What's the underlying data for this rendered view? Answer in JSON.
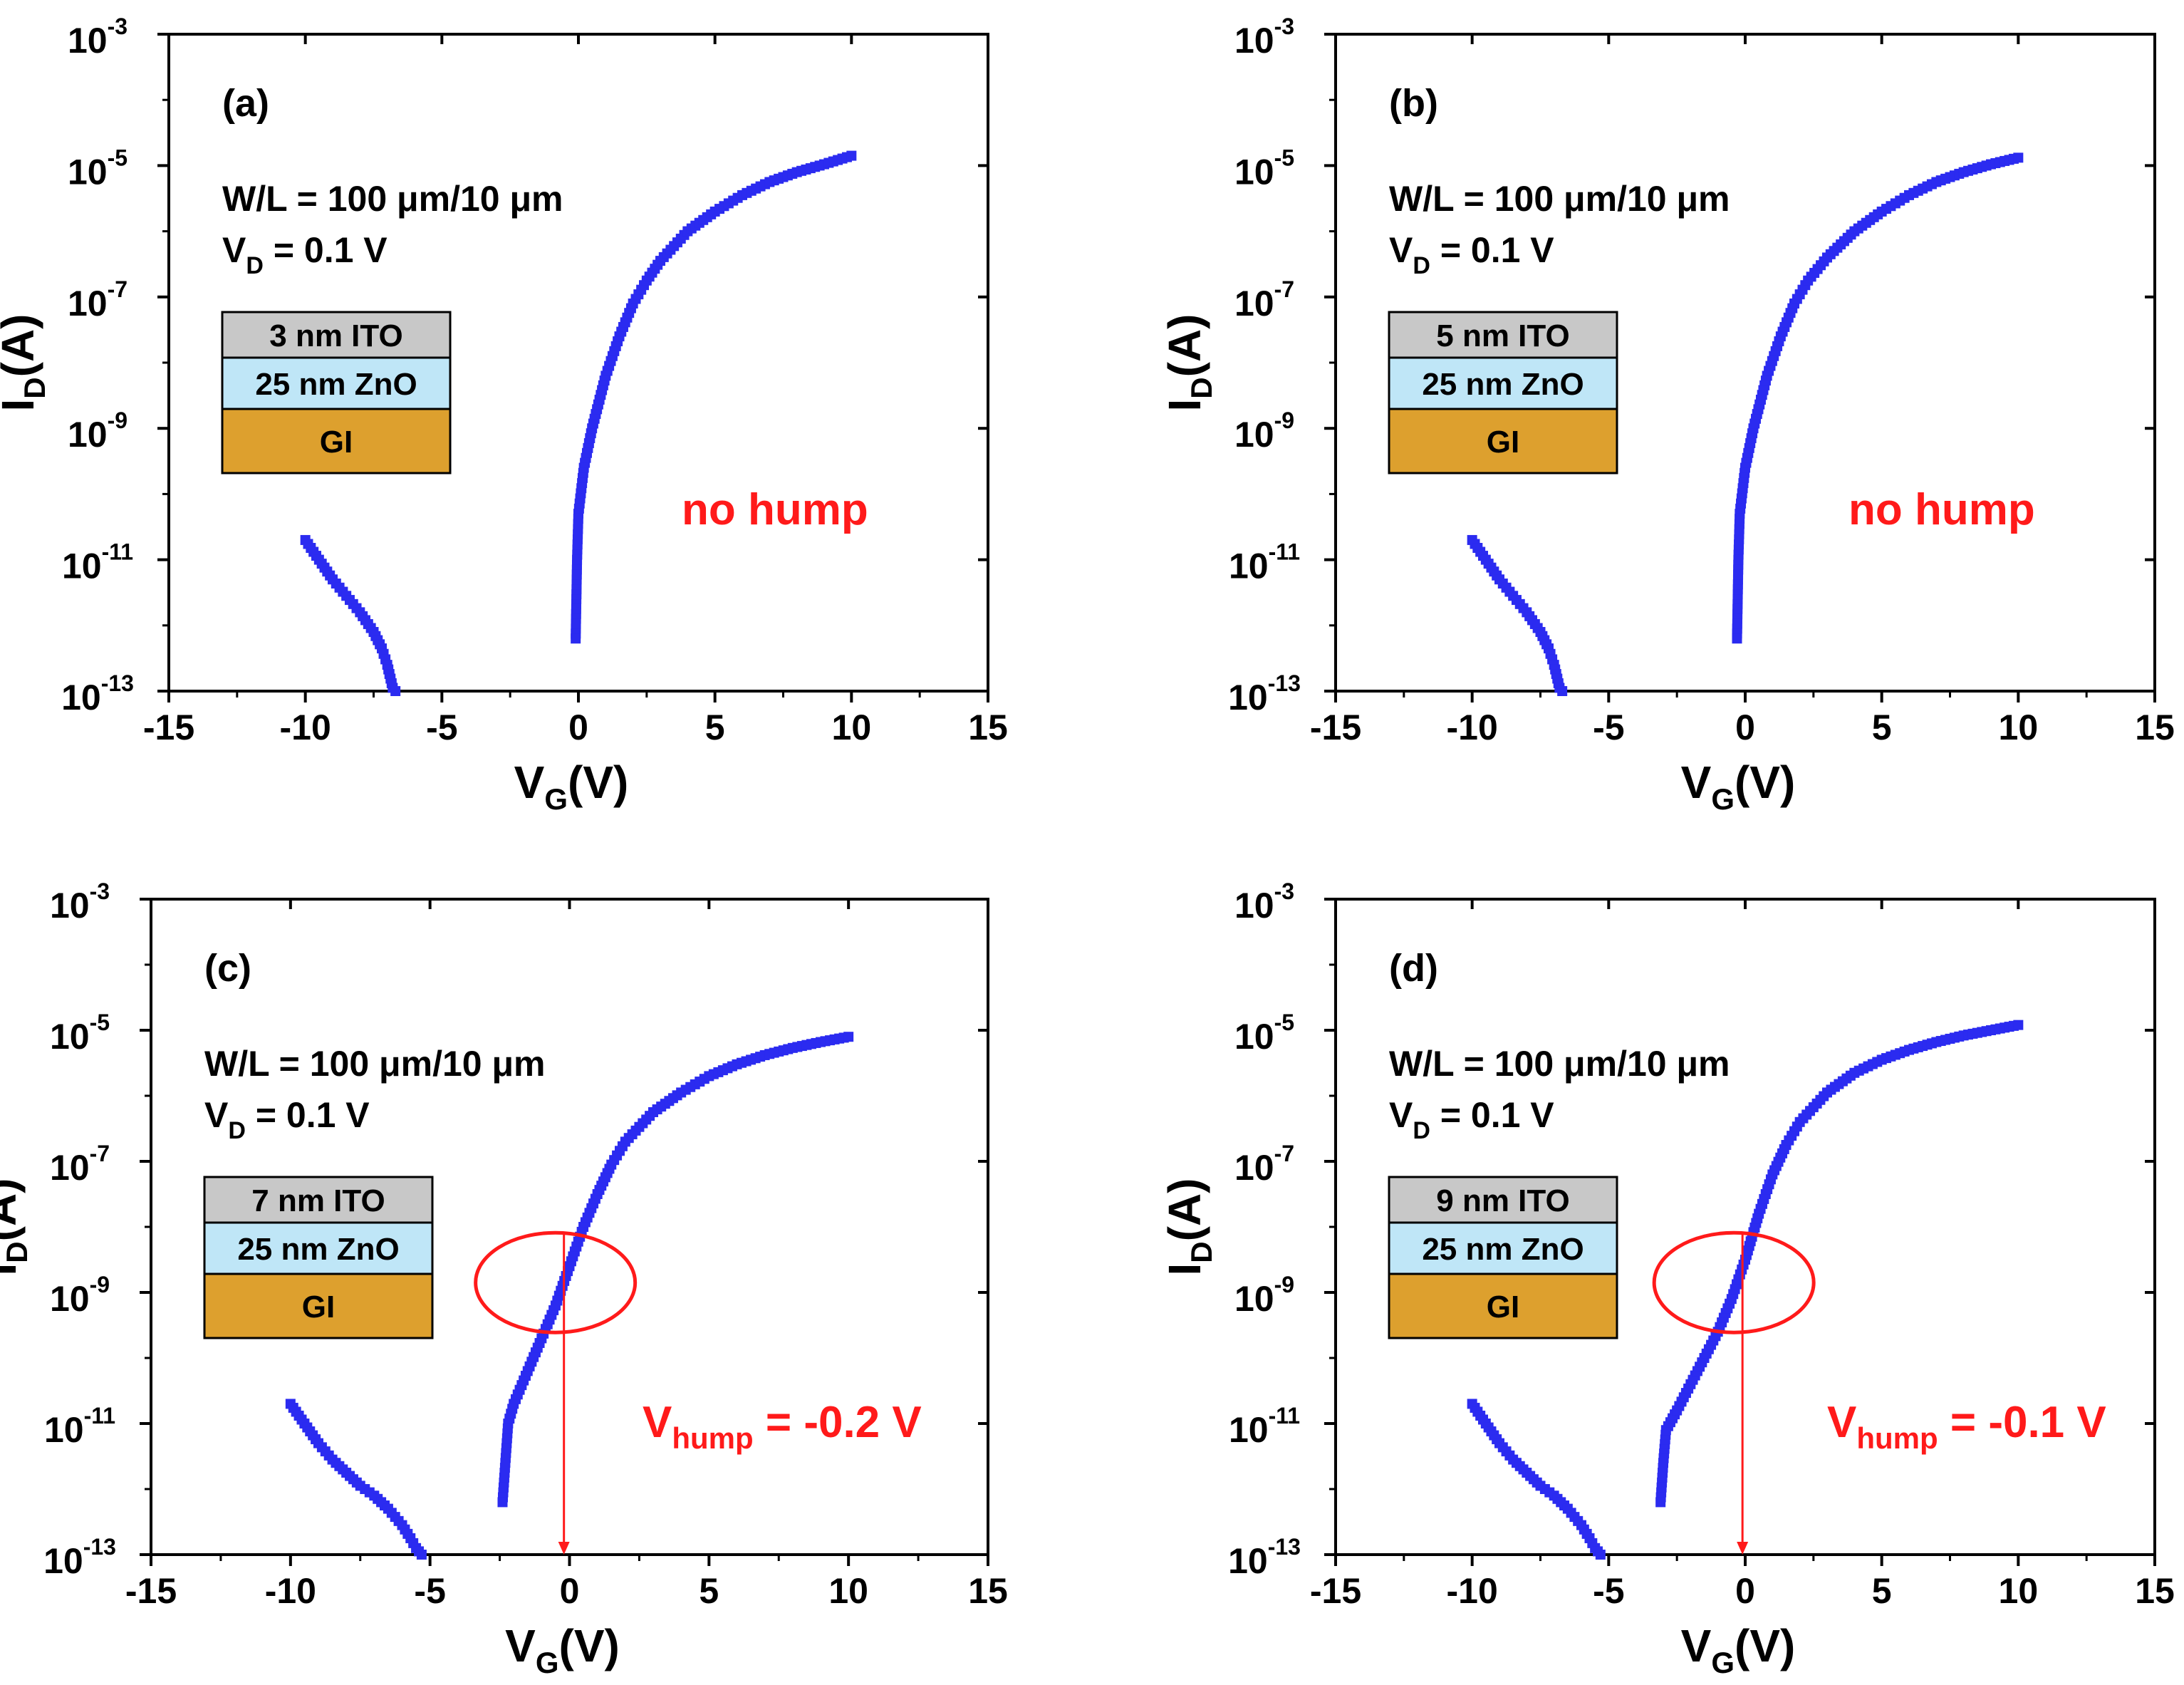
{
  "colors": {
    "curve": "#2b2bf0",
    "annotation": "#ff1a1a",
    "ito": "#c8c8c8",
    "zno": "#bfe6f7",
    "gi": "#dda02e",
    "frame": "#000000"
  },
  "chart_data": [
    {
      "type": "line",
      "panel": "(a)",
      "xlabel": "V",
      "xlabel_sub": "G",
      "xlabel_unit": "(V)",
      "ylabel": "I",
      "ylabel_sub": "D",
      "ylabel_unit": "(A)",
      "xlim": [
        -15,
        15
      ],
      "xticks": [
        "-15",
        "-10",
        "-5",
        "0",
        "5",
        "10",
        "15"
      ],
      "ylim_exp": [
        -13,
        -3
      ],
      "yticks": [
        {
          "base": "10",
          "exp": "-3"
        },
        {
          "base": "10",
          "exp": "-5"
        },
        {
          "base": "10",
          "exp": "-7"
        },
        {
          "base": "10",
          "exp": "-9"
        },
        {
          "base": "10",
          "exp": "-11"
        },
        {
          "base": "10",
          "exp": "-13"
        }
      ],
      "info": {
        "line1": "W/L = 100 μm/10 μm",
        "line2_main": "V",
        "line2_sub": "D",
        "line2_rest": " = 0.1 V"
      },
      "layers": {
        "ito": "3 nm ITO",
        "zno": "25 nm ZnO",
        "gi": "GI"
      },
      "note": {
        "main": "no hump",
        "sub": "",
        "rest": ""
      },
      "series": [
        {
          "name": "off-branch",
          "x": [
            -10,
            -9.5,
            -9,
            -8.5,
            -8,
            -7.5,
            -7.2,
            -7.0,
            -6.8,
            -6.7
          ],
          "log10_y": [
            -10.7,
            -11.0,
            -11.3,
            -11.55,
            -11.8,
            -12.1,
            -12.35,
            -12.6,
            -12.95,
            -13.0
          ]
        },
        {
          "name": "on-branch",
          "x": [
            -0.1,
            -0.05,
            0,
            0.2,
            0.5,
            1,
            1.5,
            2,
            2.5,
            3,
            4,
            5,
            6,
            7,
            8,
            9,
            10
          ],
          "log10_y": [
            -12.2,
            -11.0,
            -10.3,
            -9.6,
            -9.0,
            -8.2,
            -7.6,
            -7.1,
            -6.75,
            -6.45,
            -6.0,
            -5.7,
            -5.45,
            -5.25,
            -5.1,
            -4.98,
            -4.85
          ]
        }
      ]
    },
    {
      "type": "line",
      "panel": "(b)",
      "xlabel": "V",
      "xlabel_sub": "G",
      "xlabel_unit": "(V)",
      "ylabel": "I",
      "ylabel_sub": "D",
      "ylabel_unit": "(A)",
      "xlim": [
        -15,
        15
      ],
      "xticks": [
        "-15",
        "-10",
        "-5",
        "0",
        "5",
        "10",
        "15"
      ],
      "ylim_exp": [
        -13,
        -3
      ],
      "yticks": [
        {
          "base": "10",
          "exp": "-3"
        },
        {
          "base": "10",
          "exp": "-5"
        },
        {
          "base": "10",
          "exp": "-7"
        },
        {
          "base": "10",
          "exp": "-9"
        },
        {
          "base": "10",
          "exp": "-11"
        },
        {
          "base": "10",
          "exp": "-13"
        }
      ],
      "info": {
        "line1": "W/L = 100 μm/10 μm",
        "line2_main": "V",
        "line2_sub": "D",
        "line2_rest": " = 0.1 V"
      },
      "layers": {
        "ito": "5 nm ITO",
        "zno": "25 nm ZnO",
        "gi": "GI"
      },
      "note": {
        "main": "no hump",
        "sub": "",
        "rest": ""
      },
      "series": [
        {
          "name": "off-branch",
          "x": [
            -10,
            -9.5,
            -9,
            -8.5,
            -8,
            -7.5,
            -7.2,
            -7.0,
            -6.8,
            -6.7
          ],
          "log10_y": [
            -10.7,
            -11.0,
            -11.3,
            -11.55,
            -11.8,
            -12.1,
            -12.35,
            -12.6,
            -12.95,
            -13.0
          ]
        },
        {
          "name": "on-branch",
          "x": [
            -0.3,
            -0.25,
            -0.2,
            0,
            0.3,
            0.8,
            1.3,
            1.8,
            2.3,
            3,
            4,
            5,
            6,
            7,
            8,
            9,
            10
          ],
          "log10_y": [
            -12.2,
            -11.0,
            -10.3,
            -9.6,
            -9.0,
            -8.2,
            -7.6,
            -7.1,
            -6.75,
            -6.4,
            -6.0,
            -5.7,
            -5.45,
            -5.25,
            -5.1,
            -4.98,
            -4.88
          ]
        }
      ]
    },
    {
      "type": "line",
      "panel": "(c)",
      "xlabel": "V",
      "xlabel_sub": "G",
      "xlabel_unit": "(V)",
      "ylabel": "I",
      "ylabel_sub": "D",
      "ylabel_unit": "(A)",
      "xlim": [
        -15,
        15
      ],
      "xticks": [
        "-15",
        "-10",
        "-5",
        "0",
        "5",
        "10",
        "15"
      ],
      "ylim_exp": [
        -13,
        -3
      ],
      "yticks": [
        {
          "base": "10",
          "exp": "-3"
        },
        {
          "base": "10",
          "exp": "-5"
        },
        {
          "base": "10",
          "exp": "-7"
        },
        {
          "base": "10",
          "exp": "-9"
        },
        {
          "base": "10",
          "exp": "-11"
        },
        {
          "base": "10",
          "exp": "-13"
        }
      ],
      "info": {
        "line1": "W/L = 100 μm/10 μm",
        "line2_main": "V",
        "line2_sub": "D",
        "line2_rest": " = 0.1 V"
      },
      "layers": {
        "ito": "7 nm ITO",
        "zno": "25 nm ZnO",
        "gi": "GI"
      },
      "note": {
        "main": "V",
        "sub": "hump",
        "rest": " = -0.2 V"
      },
      "hump_v": -0.2,
      "series": [
        {
          "name": "off-branch",
          "x": [
            -10,
            -9.5,
            -9,
            -8.5,
            -8,
            -7.5,
            -7,
            -6.5,
            -6,
            -5.7,
            -5.5,
            -5.3
          ],
          "log10_y": [
            -10.7,
            -11.0,
            -11.3,
            -11.55,
            -11.75,
            -11.95,
            -12.1,
            -12.3,
            -12.55,
            -12.75,
            -12.9,
            -13.0
          ]
        },
        {
          "name": "on-branch",
          "x": [
            -2.4,
            -2.3,
            -2.2,
            -2,
            -1.5,
            -1,
            -0.5,
            0,
            0.5,
            1,
            1.5,
            2,
            3,
            4,
            5,
            6,
            7,
            8,
            9,
            10
          ],
          "log10_y": [
            -12.2,
            -11.6,
            -11.0,
            -10.7,
            -10.2,
            -9.7,
            -9.2,
            -8.6,
            -8.0,
            -7.5,
            -7.05,
            -6.7,
            -6.25,
            -5.95,
            -5.7,
            -5.52,
            -5.38,
            -5.27,
            -5.18,
            -5.1
          ]
        }
      ]
    },
    {
      "type": "line",
      "panel": "(d)",
      "xlabel": "V",
      "xlabel_sub": "G",
      "xlabel_unit": "(V)",
      "ylabel": "I",
      "ylabel_sub": "D",
      "ylabel_unit": "(A)",
      "xlim": [
        -15,
        15
      ],
      "xticks": [
        "-15",
        "-10",
        "-5",
        "0",
        "5",
        "10",
        "15"
      ],
      "ylim_exp": [
        -13,
        -3
      ],
      "yticks": [
        {
          "base": "10",
          "exp": "-3"
        },
        {
          "base": "10",
          "exp": "-5"
        },
        {
          "base": "10",
          "exp": "-7"
        },
        {
          "base": "10",
          "exp": "-9"
        },
        {
          "base": "10",
          "exp": "-11"
        },
        {
          "base": "10",
          "exp": "-13"
        }
      ],
      "info": {
        "line1": "W/L = 100 μm/10 μm",
        "line2_main": "V",
        "line2_sub": "D",
        "line2_rest": " = 0.1 V"
      },
      "layers": {
        "ito": "9 nm ITO",
        "zno": "25 nm ZnO",
        "gi": "GI"
      },
      "note": {
        "main": "V",
        "sub": "hump",
        "rest": " = -0.1 V"
      },
      "hump_v": -0.1,
      "series": [
        {
          "name": "off-branch",
          "x": [
            -10,
            -9.5,
            -9,
            -8.5,
            -8,
            -7.5,
            -7,
            -6.5,
            -6,
            -5.7,
            -5.5,
            -5.3
          ],
          "log10_y": [
            -10.7,
            -11.0,
            -11.3,
            -11.55,
            -11.75,
            -11.95,
            -12.1,
            -12.3,
            -12.55,
            -12.75,
            -12.9,
            -13.0
          ]
        },
        {
          "name": "on-branch",
          "x": [
            -3.1,
            -3.0,
            -2.9,
            -2.5,
            -2,
            -1.5,
            -1,
            -0.5,
            0,
            0.5,
            1,
            1.5,
            2,
            3,
            4,
            5,
            6,
            7,
            8,
            9,
            10
          ],
          "log10_y": [
            -12.2,
            -11.6,
            -11.1,
            -10.8,
            -10.4,
            -10.0,
            -9.6,
            -9.1,
            -8.5,
            -7.8,
            -7.2,
            -6.75,
            -6.4,
            -5.95,
            -5.65,
            -5.45,
            -5.3,
            -5.18,
            -5.08,
            -5.0,
            -4.92
          ]
        }
      ]
    }
  ]
}
